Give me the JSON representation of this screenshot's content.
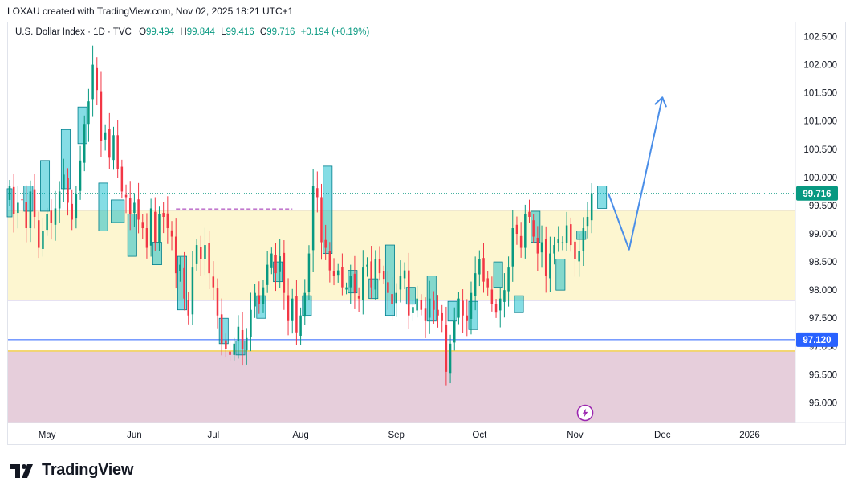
{
  "header": {
    "credit": "LOXAU created with TradingView.com, Nov 02, 2025 18:21 UTC+1"
  },
  "legend": {
    "symbol": "U.S. Dollar Index · 1D · TVC",
    "o_label": "O",
    "o_value": "99.494",
    "h_label": "H",
    "h_value": "99.844",
    "l_label": "L",
    "l_value": "99.416",
    "c_label": "C",
    "c_value": "99.716",
    "change": "+0.194 (+0.19%)"
  },
  "brand": {
    "name": "TradingView"
  },
  "colors": {
    "up": "#089981",
    "down": "#f23645",
    "box": "#00b8c8",
    "arrow": "#4a8ee8",
    "supply_zone": "#fdf6d0",
    "demand_zone": "#e6cedb",
    "price_tag": "#089981",
    "level_tag": "#2962ff"
  },
  "chart_data": {
    "type": "candlestick",
    "title": "U.S. Dollar Index · 1D · TVC",
    "ylim": [
      95.65,
      102.75
    ],
    "xlim": [
      0,
      189
    ],
    "y_ticks": [
      {
        "value": 102.5,
        "label": "102.500"
      },
      {
        "value": 102.0,
        "label": "102.000"
      },
      {
        "value": 101.5,
        "label": "101.500"
      },
      {
        "value": 101.0,
        "label": "101.000"
      },
      {
        "value": 100.5,
        "label": "100.500"
      },
      {
        "value": 100.0,
        "label": "100.000"
      },
      {
        "value": 99.5,
        "label": "99.500"
      },
      {
        "value": 99.0,
        "label": "99.000"
      },
      {
        "value": 98.5,
        "label": "98.500"
      },
      {
        "value": 98.0,
        "label": "98.000"
      },
      {
        "value": 97.5,
        "label": "97.500"
      },
      {
        "value": 97.0,
        "label": "97.000"
      },
      {
        "value": 96.5,
        "label": "96.500"
      },
      {
        "value": 96.0,
        "label": "96.000"
      }
    ],
    "x_ticks": [
      {
        "label": "May",
        "index": 9
      },
      {
        "label": "Jun",
        "index": 30
      },
      {
        "label": "Jul",
        "index": 49
      },
      {
        "label": "Aug",
        "index": 70
      },
      {
        "label": "Sep",
        "index": 93
      },
      {
        "label": "Oct",
        "index": 113
      },
      {
        "label": "Nov",
        "index": 136
      },
      {
        "label": "Dec",
        "index": 157
      },
      {
        "label": "2026",
        "index": 178
      }
    ],
    "closes": [
      99.85,
      99.35,
      99.55,
      99.6,
      99.1,
      99.75,
      99.3,
      98.75,
      99.05,
      99.35,
      99.2,
      99.45,
      99.75,
      100.05,
      99.55,
      99.25,
      99.7,
      100.3,
      100.95,
      101.35,
      102.0,
      101.55,
      100.65,
      100.8,
      100.35,
      100.75,
      100.15,
      99.75,
      99.65,
      99.35,
      99.55,
      99.25,
      99.1,
      98.75,
      99.45,
      98.85,
      99.35,
      99.3,
      99.1,
      98.95,
      98.3,
      98.45,
      97.85,
      97.55,
      98.4,
      98.8,
      98.55,
      98.8,
      98.3,
      98.05,
      97.55,
      97.05,
      96.95,
      96.85,
      97.05,
      97.35,
      96.95,
      97.15,
      97.65,
      97.95,
      97.75,
      98.05,
      98.45,
      98.65,
      98.3,
      98.6,
      97.95,
      97.45,
      97.85,
      97.25,
      97.55,
      97.95,
      98.65,
      99.85,
      99.65,
      98.85,
      98.75,
      98.35,
      98.25,
      98.35,
      98.05,
      98.05,
      98.25,
      97.95,
      97.85,
      98.4,
      98.45,
      98.05,
      98.55,
      98.3,
      98.2,
      97.95,
      97.75,
      97.95,
      98.25,
      98.35,
      97.55,
      97.7,
      97.85,
      97.65,
      97.45,
      97.85,
      97.65,
      97.55,
      97.45,
      96.55,
      97.05,
      97.45,
      97.85,
      97.55,
      97.45,
      97.95,
      98.3,
      98.55,
      98.15,
      98.05,
      97.75,
      97.6,
      97.85,
      98.0,
      98.4,
      99.1,
      99.0,
      98.75,
      99.35,
      99.3,
      98.95,
      98.65,
      98.85,
      98.25,
      98.65,
      98.8,
      98.9,
      98.85,
      99.15,
      98.8,
      98.55,
      98.7,
      99.1,
      99.3,
      99.72
    ],
    "highlight_boxes": [
      {
        "i1": 0,
        "i2": 0,
        "lo": 99.3,
        "hi": 99.8
      },
      {
        "i1": 4,
        "i2": 5,
        "lo": 99.4,
        "hi": 99.85
      },
      {
        "i1": 8,
        "i2": 9,
        "lo": 99.4,
        "hi": 100.3
      },
      {
        "i1": 13,
        "i2": 14,
        "lo": 99.8,
        "hi": 100.85
      },
      {
        "i1": 17,
        "i2": 18,
        "lo": 100.6,
        "hi": 101.25
      },
      {
        "i1": 22,
        "i2": 23,
        "lo": 99.05,
        "hi": 99.9
      },
      {
        "i1": 25,
        "i2": 27,
        "lo": 99.2,
        "hi": 99.6
      },
      {
        "i1": 29,
        "i2": 30,
        "lo": 98.6,
        "hi": 99.35
      },
      {
        "i1": 35,
        "i2": 36,
        "lo": 98.45,
        "hi": 98.85
      },
      {
        "i1": 41,
        "i2": 42,
        "lo": 97.65,
        "hi": 98.6
      },
      {
        "i1": 51,
        "i2": 52,
        "lo": 97.05,
        "hi": 97.5
      },
      {
        "i1": 55,
        "i2": 56,
        "lo": 96.85,
        "hi": 97.1
      },
      {
        "i1": 60,
        "i2": 61,
        "lo": 97.5,
        "hi": 97.9
      },
      {
        "i1": 64,
        "i2": 65,
        "lo": 98.15,
        "hi": 98.5
      },
      {
        "i1": 71,
        "i2": 72,
        "lo": 97.55,
        "hi": 97.9
      },
      {
        "i1": 76,
        "i2": 77,
        "lo": 98.65,
        "hi": 100.2
      },
      {
        "i1": 82,
        "i2": 83,
        "lo": 97.95,
        "hi": 98.35
      },
      {
        "i1": 87,
        "i2": 88,
        "lo": 97.85,
        "hi": 98.2
      },
      {
        "i1": 91,
        "i2": 92,
        "lo": 97.55,
        "hi": 98.8
      },
      {
        "i1": 96,
        "i2": 97,
        "lo": 97.75,
        "hi": 98.05
      },
      {
        "i1": 101,
        "i2": 102,
        "lo": 97.45,
        "hi": 98.25
      },
      {
        "i1": 106,
        "i2": 107,
        "lo": 97.45,
        "hi": 97.8
      },
      {
        "i1": 111,
        "i2": 112,
        "lo": 97.3,
        "hi": 97.8
      },
      {
        "i1": 117,
        "i2": 118,
        "lo": 98.05,
        "hi": 98.5
      },
      {
        "i1": 122,
        "i2": 123,
        "lo": 97.6,
        "hi": 97.9
      },
      {
        "i1": 126,
        "i2": 127,
        "lo": 98.85,
        "hi": 99.4
      },
      {
        "i1": 132,
        "i2": 133,
        "lo": 98.0,
        "hi": 98.55
      },
      {
        "i1": 137,
        "i2": 138,
        "lo": 98.9,
        "hi": 99.05
      },
      {
        "i1": 142,
        "i2": 143,
        "lo": 99.45,
        "hi": 99.85
      }
    ],
    "zones": {
      "supply": {
        "from": 97.82,
        "to": 99.42
      },
      "demand": {
        "from": 95.65,
        "to": 96.92
      }
    },
    "levels": {
      "resistance_dashed": 99.44,
      "support_line": 97.12,
      "current_price": 99.716
    },
    "projection": [
      {
        "index": 144,
        "value": 99.72
      },
      {
        "index": 149,
        "value": 98.72
      },
      {
        "index": 157,
        "value": 101.42
      }
    ],
    "price_labels": {
      "current": "99.716",
      "support": "97.120"
    }
  }
}
